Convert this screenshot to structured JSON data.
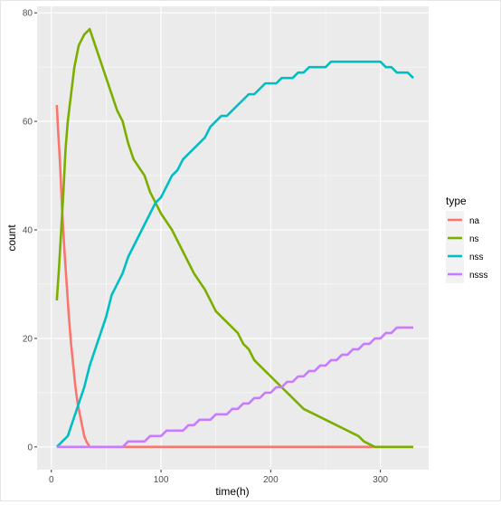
{
  "chart_data": {
    "type": "line",
    "title": "",
    "xlabel": "time(h)",
    "ylabel": "count",
    "xlim": [
      -13,
      344
    ],
    "ylim": [
      -4.2,
      81.2
    ],
    "xticks": [
      0,
      100,
      200,
      300
    ],
    "xtick_labels": [
      "0",
      "100",
      "200",
      "300"
    ],
    "yticks": [
      0,
      20,
      40,
      60,
      80
    ],
    "ytick_labels": [
      "0",
      "20",
      "40",
      "60",
      "80"
    ],
    "grid": true,
    "legend_position": "right",
    "legend_title": "type",
    "series": [
      {
        "name": "na",
        "color": "#F8766D",
        "points": [
          [
            5,
            63
          ],
          [
            6,
            59
          ],
          [
            8,
            52
          ],
          [
            10,
            43
          ],
          [
            12,
            36
          ],
          [
            14,
            30
          ],
          [
            16,
            24
          ],
          [
            18,
            19
          ],
          [
            20,
            15
          ],
          [
            22,
            11
          ],
          [
            24,
            8
          ],
          [
            26,
            6
          ],
          [
            28,
            4
          ],
          [
            30,
            2
          ],
          [
            32,
            1
          ],
          [
            35,
            0
          ],
          [
            40,
            0
          ],
          [
            100,
            0
          ],
          [
            200,
            0
          ],
          [
            280,
            0
          ],
          [
            290,
            0
          ],
          [
            300,
            0
          ],
          [
            330,
            0
          ]
        ]
      },
      {
        "name": "ns",
        "color": "#7CAE00",
        "points": [
          [
            5,
            27
          ],
          [
            7,
            33
          ],
          [
            9,
            40
          ],
          [
            11,
            47
          ],
          [
            13,
            55
          ],
          [
            15,
            60
          ],
          [
            18,
            65
          ],
          [
            21,
            70
          ],
          [
            25,
            74
          ],
          [
            30,
            76
          ],
          [
            35,
            77
          ],
          [
            40,
            74
          ],
          [
            50,
            68
          ],
          [
            60,
            62
          ],
          [
            65,
            60
          ],
          [
            70,
            56
          ],
          [
            75,
            53
          ],
          [
            85,
            50
          ],
          [
            90,
            47
          ],
          [
            95,
            45
          ],
          [
            100,
            43
          ],
          [
            110,
            40
          ],
          [
            115,
            38
          ],
          [
            120,
            36
          ],
          [
            125,
            34
          ],
          [
            130,
            32
          ],
          [
            140,
            29
          ],
          [
            145,
            27
          ],
          [
            150,
            25
          ],
          [
            160,
            23
          ],
          [
            170,
            21
          ],
          [
            175,
            19
          ],
          [
            180,
            18
          ],
          [
            185,
            16
          ],
          [
            190,
            15
          ],
          [
            195,
            14
          ],
          [
            200,
            13
          ],
          [
            210,
            11
          ],
          [
            220,
            9
          ],
          [
            230,
            7
          ],
          [
            240,
            6
          ],
          [
            250,
            5
          ],
          [
            260,
            4
          ],
          [
            270,
            3
          ],
          [
            280,
            2
          ],
          [
            285,
            1
          ],
          [
            295,
            0
          ],
          [
            310,
            0
          ],
          [
            330,
            0
          ]
        ]
      },
      {
        "name": "nss",
        "color": "#00BFC4",
        "points": [
          [
            5,
            0
          ],
          [
            10,
            1
          ],
          [
            15,
            2
          ],
          [
            20,
            5
          ],
          [
            25,
            8
          ],
          [
            30,
            11
          ],
          [
            35,
            15
          ],
          [
            40,
            18
          ],
          [
            45,
            21
          ],
          [
            50,
            24
          ],
          [
            55,
            28
          ],
          [
            60,
            30
          ],
          [
            65,
            32
          ],
          [
            70,
            35
          ],
          [
            75,
            37
          ],
          [
            80,
            39
          ],
          [
            85,
            41
          ],
          [
            90,
            43
          ],
          [
            95,
            45
          ],
          [
            100,
            46
          ],
          [
            105,
            48
          ],
          [
            110,
            50
          ],
          [
            115,
            51
          ],
          [
            120,
            53
          ],
          [
            125,
            54
          ],
          [
            130,
            55
          ],
          [
            140,
            57
          ],
          [
            145,
            59
          ],
          [
            150,
            60
          ],
          [
            155,
            61
          ],
          [
            160,
            61
          ],
          [
            165,
            62
          ],
          [
            170,
            63
          ],
          [
            175,
            64
          ],
          [
            180,
            65
          ],
          [
            185,
            65
          ],
          [
            190,
            66
          ],
          [
            195,
            67
          ],
          [
            200,
            67
          ],
          [
            205,
            67
          ],
          [
            210,
            68
          ],
          [
            215,
            68
          ],
          [
            220,
            68
          ],
          [
            225,
            69
          ],
          [
            230,
            69
          ],
          [
            235,
            70
          ],
          [
            240,
            70
          ],
          [
            245,
            70
          ],
          [
            250,
            70
          ],
          [
            255,
            71
          ],
          [
            260,
            71
          ],
          [
            270,
            71
          ],
          [
            280,
            71
          ],
          [
            290,
            71
          ],
          [
            300,
            71
          ],
          [
            305,
            70
          ],
          [
            310,
            70
          ],
          [
            315,
            69
          ],
          [
            320,
            69
          ],
          [
            325,
            69
          ],
          [
            330,
            68
          ]
        ]
      },
      {
        "name": "nsss",
        "color": "#C77CFF",
        "points": [
          [
            5,
            0
          ],
          [
            30,
            0
          ],
          [
            60,
            0
          ],
          [
            65,
            0
          ],
          [
            70,
            1
          ],
          [
            80,
            1
          ],
          [
            85,
            1
          ],
          [
            90,
            2
          ],
          [
            100,
            2
          ],
          [
            105,
            3
          ],
          [
            110,
            3
          ],
          [
            120,
            3
          ],
          [
            125,
            4
          ],
          [
            130,
            4
          ],
          [
            135,
            5
          ],
          [
            145,
            5
          ],
          [
            150,
            6
          ],
          [
            160,
            6
          ],
          [
            165,
            7
          ],
          [
            170,
            7
          ],
          [
            175,
            8
          ],
          [
            180,
            8
          ],
          [
            185,
            9
          ],
          [
            190,
            9
          ],
          [
            195,
            10
          ],
          [
            200,
            10
          ],
          [
            205,
            11
          ],
          [
            210,
            11
          ],
          [
            215,
            12
          ],
          [
            220,
            12
          ],
          [
            225,
            13
          ],
          [
            230,
            13
          ],
          [
            235,
            14
          ],
          [
            240,
            14
          ],
          [
            245,
            15
          ],
          [
            250,
            15
          ],
          [
            255,
            16
          ],
          [
            260,
            16
          ],
          [
            265,
            17
          ],
          [
            270,
            17
          ],
          [
            275,
            18
          ],
          [
            280,
            18
          ],
          [
            285,
            19
          ],
          [
            290,
            19
          ],
          [
            295,
            20
          ],
          [
            300,
            20
          ],
          [
            305,
            21
          ],
          [
            310,
            21
          ],
          [
            315,
            22
          ],
          [
            320,
            22
          ],
          [
            325,
            22
          ],
          [
            330,
            22
          ]
        ]
      }
    ]
  }
}
